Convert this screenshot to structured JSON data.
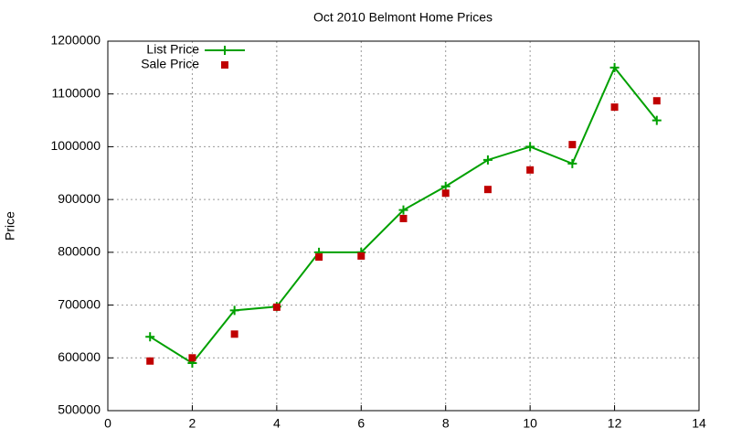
{
  "chart_data": {
    "type": "line",
    "title": "Oct 2010 Belmont Home Prices",
    "y_label": "Price",
    "x": [
      1,
      2,
      3,
      4,
      5,
      6,
      7,
      8,
      9,
      10,
      11,
      12,
      13
    ],
    "series": [
      {
        "name": "List Price",
        "color": "#00a000",
        "style": "linespoints",
        "marker": "plus",
        "values": [
          640000,
          590000,
          690000,
          697000,
          800000,
          800000,
          880000,
          925000,
          975000,
          1000000,
          968000,
          1150000,
          1050000
        ]
      },
      {
        "name": "Sale Price",
        "color": "#c00000",
        "style": "points",
        "marker": "square",
        "values": [
          594000,
          600000,
          645000,
          696000,
          791000,
          793000,
          864000,
          912000,
          919000,
          956000,
          1004000,
          1075000,
          1087000
        ]
      }
    ],
    "xlim": [
      0,
      14
    ],
    "xticks": [
      0,
      2,
      4,
      6,
      8,
      10,
      12,
      14
    ],
    "ylim": [
      500000,
      1200000
    ],
    "yticks": [
      500000,
      600000,
      700000,
      800000,
      900000,
      1000000,
      1100000,
      1200000
    ],
    "grid": true,
    "legend": "top-left"
  }
}
